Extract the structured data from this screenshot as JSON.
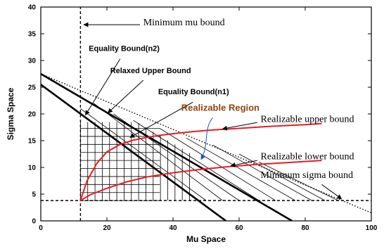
{
  "chart_data": {
    "type": "line",
    "xlabel": "Mu Space",
    "ylabel": "Sigma Space",
    "xlim": [
      0,
      100
    ],
    "ylim": [
      0,
      40
    ],
    "xticks": [
      0,
      20,
      40,
      60,
      80,
      100
    ],
    "yticks": [
      0,
      5,
      10,
      15,
      20,
      25,
      30,
      35,
      40
    ],
    "grid": false,
    "series": [
      {
        "key": "mu_min",
        "style": "dashed",
        "color": "#000000",
        "x": [
          12,
          12
        ],
        "y": [
          0,
          40
        ]
      },
      {
        "key": "sigma_min",
        "style": "dashed",
        "color": "#000000",
        "x": [
          0,
          100
        ],
        "y": [
          3.8,
          3.8
        ]
      },
      {
        "key": "relaxed_upper",
        "style": "dotted",
        "color": "#000000",
        "x": [
          0,
          100
        ],
        "y": [
          27.5,
          1.5
        ]
      },
      {
        "key": "eq_n2",
        "style": "solid-thick",
        "color": "#000000",
        "x": [
          0,
          56
        ],
        "y": [
          25.5,
          0
        ]
      },
      {
        "key": "eq_n1",
        "style": "solid-thick",
        "color": "#000000",
        "x": [
          0,
          76
        ],
        "y": [
          27.5,
          0
        ]
      },
      {
        "key": "real_upper",
        "style": "solid",
        "color": "#e41e26",
        "x": [
          12,
          14,
          17,
          20,
          24,
          28,
          32,
          36,
          40,
          46,
          52,
          60,
          70,
          80,
          85
        ],
        "y": [
          3.8,
          7.5,
          10.8,
          12.9,
          14.3,
          15.1,
          15.6,
          16.0,
          16.3,
          16.7,
          17.0,
          17.3,
          17.7,
          18.0,
          18.2
        ]
      },
      {
        "key": "real_lower",
        "style": "solid",
        "color": "#e41e26",
        "x": [
          12,
          15,
          20,
          26,
          32,
          40,
          48,
          56,
          64,
          72,
          80,
          85
        ],
        "y": [
          3.8,
          4.9,
          6.1,
          7.3,
          8.2,
          9.0,
          9.6,
          10.1,
          10.5,
          10.8,
          11.1,
          11.3
        ]
      }
    ],
    "hatch": {
      "horizontal": {
        "x": [
          12,
          36
        ],
        "y_from": 3.8,
        "y_to": 18.5,
        "step": 1.5
      },
      "vertical": {
        "x_from": 12,
        "x_to": 46,
        "step": 2.2
      },
      "diagonal": [
        {
          "x1": 12,
          "y1": 21,
          "x2": 50,
          "y2": 3.8
        },
        {
          "x1": 16,
          "y1": 22,
          "x2": 55,
          "y2": 3.8
        },
        {
          "x1": 22,
          "y1": 20,
          "x2": 60,
          "y2": 3.8
        },
        {
          "x1": 28,
          "y1": 18.8,
          "x2": 66,
          "y2": 3.8
        },
        {
          "x1": 36,
          "y1": 17.3,
          "x2": 71,
          "y2": 3.8
        },
        {
          "x1": 44,
          "y1": 15.5,
          "x2": 77,
          "y2": 3.8
        },
        {
          "x1": 52,
          "y1": 14.2,
          "x2": 82,
          "y2": 3.8
        },
        {
          "x1": 60,
          "y1": 12.5,
          "x2": 86,
          "y2": 3.8
        },
        {
          "x1": 66,
          "y1": 11.0,
          "x2": 90,
          "y2": 3.8
        }
      ]
    },
    "annotations": [
      {
        "key": "min_mu",
        "text": "Minimum mu bound",
        "style": "serif",
        "tx": 31,
        "ty": 36.6,
        "ax1": 30,
        "ay1": 36.7,
        "ax2": 13,
        "ay2": 36.7
      },
      {
        "key": "eq_n2",
        "text": "Equality Bound(n2)",
        "style": "bold",
        "tx": 14.5,
        "ty": 31.8,
        "ax1": 24,
        "ay1": 30.3,
        "ax2": 13.5,
        "ay2": 19.8
      },
      {
        "key": "relaxed",
        "text": "Relaxed Upper Bound",
        "style": "bold",
        "tx": 21,
        "ty": 27.6,
        "ax1": 31,
        "ay1": 26.3,
        "ax2": 20.3,
        "ay2": 20.2
      },
      {
        "key": "eq_n1",
        "text": "Equality Bound(n1)",
        "style": "bold",
        "tx": 35.5,
        "ty": 23.7,
        "ax1": 46,
        "ay1": 22.2,
        "ax2": 27,
        "ay2": 15.6
      },
      {
        "key": "region",
        "text": "Realizable Region",
        "style": "region",
        "tx": 42.5,
        "ty": 20.6,
        "ax1": 52,
        "ay1": 19.3,
        "ax2": 48.5,
        "ay2": 11.5
      },
      {
        "key": "real_upper",
        "text": "Realizable upper bound",
        "style": "serif",
        "tx": 66.5,
        "ty": 18.5,
        "ax1": 65.5,
        "ay1": 18.4,
        "ax2": 55,
        "ay2": 17.2
      },
      {
        "key": "real_lower",
        "text": "Realizable lower bound",
        "style": "serif",
        "tx": 66.5,
        "ty": 11.5,
        "ax1": 65.5,
        "ay1": 11.3,
        "ax2": 57.5,
        "ay2": 10.3
      },
      {
        "key": "min_sigma",
        "text": "Minimum sigma bound",
        "style": "serif",
        "tx": 66.5,
        "ty": 8.0,
        "ax1": 85,
        "ay1": 6.8,
        "ax2": 91,
        "ay2": 4.1
      }
    ]
  }
}
